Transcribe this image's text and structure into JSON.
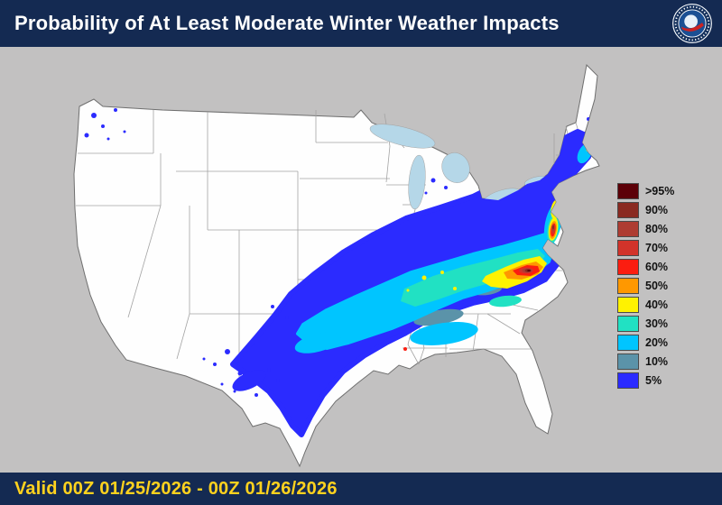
{
  "header": {
    "title": "Probability of At Least Moderate Winter Weather Impacts"
  },
  "logo": {
    "label": "National Weather Service"
  },
  "footer": {
    "valid_text": "Valid 00Z 01/25/2026 - 00Z 01/26/2026"
  },
  "map": {
    "region": "Continental United States"
  },
  "legend": {
    "items": [
      {
        "label": ">95%",
        "key": "gt95"
      },
      {
        "label": "90%",
        "key": "p90"
      },
      {
        "label": "80%",
        "key": "p80"
      },
      {
        "label": "70%",
        "key": "p70"
      },
      {
        "label": "60%",
        "key": "p60"
      },
      {
        "label": "50%",
        "key": "p50"
      },
      {
        "label": "40%",
        "key": "p40"
      },
      {
        "label": "30%",
        "key": "p30"
      },
      {
        "label": "20%",
        "key": "p20"
      },
      {
        "label": "10%",
        "key": "p10"
      },
      {
        "label": "5%",
        "key": "p5"
      }
    ]
  },
  "palette": {
    "gt95": "#5c0008",
    "p90": "#8a2a21",
    "p80": "#ae3c32",
    "p70": "#d2332a",
    "p60": "#fb1d10",
    "p50": "#ff9800",
    "p40": "#fff200",
    "p30": "#21e1c3",
    "p20": "#00c5ff",
    "p10": "#5b93a9",
    "p5": "#2b2bff"
  },
  "colors": {
    "header_bg": "#142a52",
    "footer_bg": "#142a52",
    "title_text": "#ffffff",
    "valid_text": "#ffd21e",
    "ocean": "#c2c1c1",
    "land": "#fefefe",
    "border_line": "#6f6f6f",
    "state_line": "#a3a3a3",
    "lake": "#b5d7e8"
  }
}
